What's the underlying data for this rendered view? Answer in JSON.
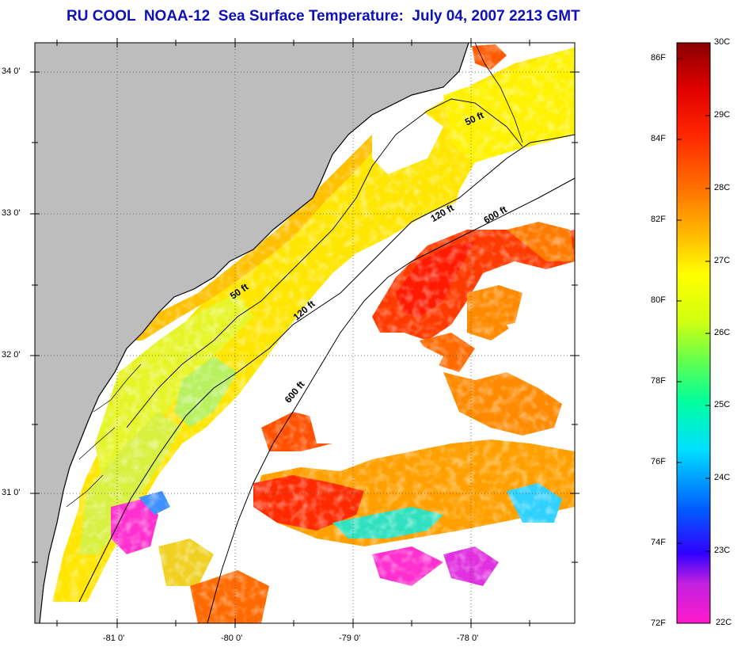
{
  "title": "RU COOL  NOAA-12  Sea Surface Temperature:  July 04, 2007 2213 GMT",
  "map": {
    "lat_labels": [
      "34 0'",
      "33 0'",
      "32 0'",
      "31 0'"
    ],
    "lon_labels": [
      "-81 0'",
      "-80 0'",
      "-79 0'",
      "-78 0'"
    ],
    "land_color": "#bdbdbd",
    "water_no_data_color": "#ffffff"
  },
  "isobaths": {
    "labels": [
      "50 ft",
      "50 ft",
      "120 ft",
      "120 ft",
      "600 ft",
      "600 ft"
    ]
  },
  "colorbar": {
    "fahrenheit_labels": [
      "86F",
      "84F",
      "82F",
      "80F",
      "78F",
      "76F",
      "74F",
      "72F"
    ],
    "celsius_labels": [
      "30C",
      "29C",
      "28C",
      "27C",
      "26C",
      "25C",
      "24C",
      "23C",
      "22C"
    ],
    "colors": [
      "#ff1acb",
      "#a020f0",
      "#0000ff",
      "#00a0ff",
      "#00ffff",
      "#00ff80",
      "#80ff40",
      "#ffff00",
      "#ffc000",
      "#ff8000",
      "#ff3000",
      "#ff0000",
      "#a00000",
      "#800000"
    ]
  }
}
